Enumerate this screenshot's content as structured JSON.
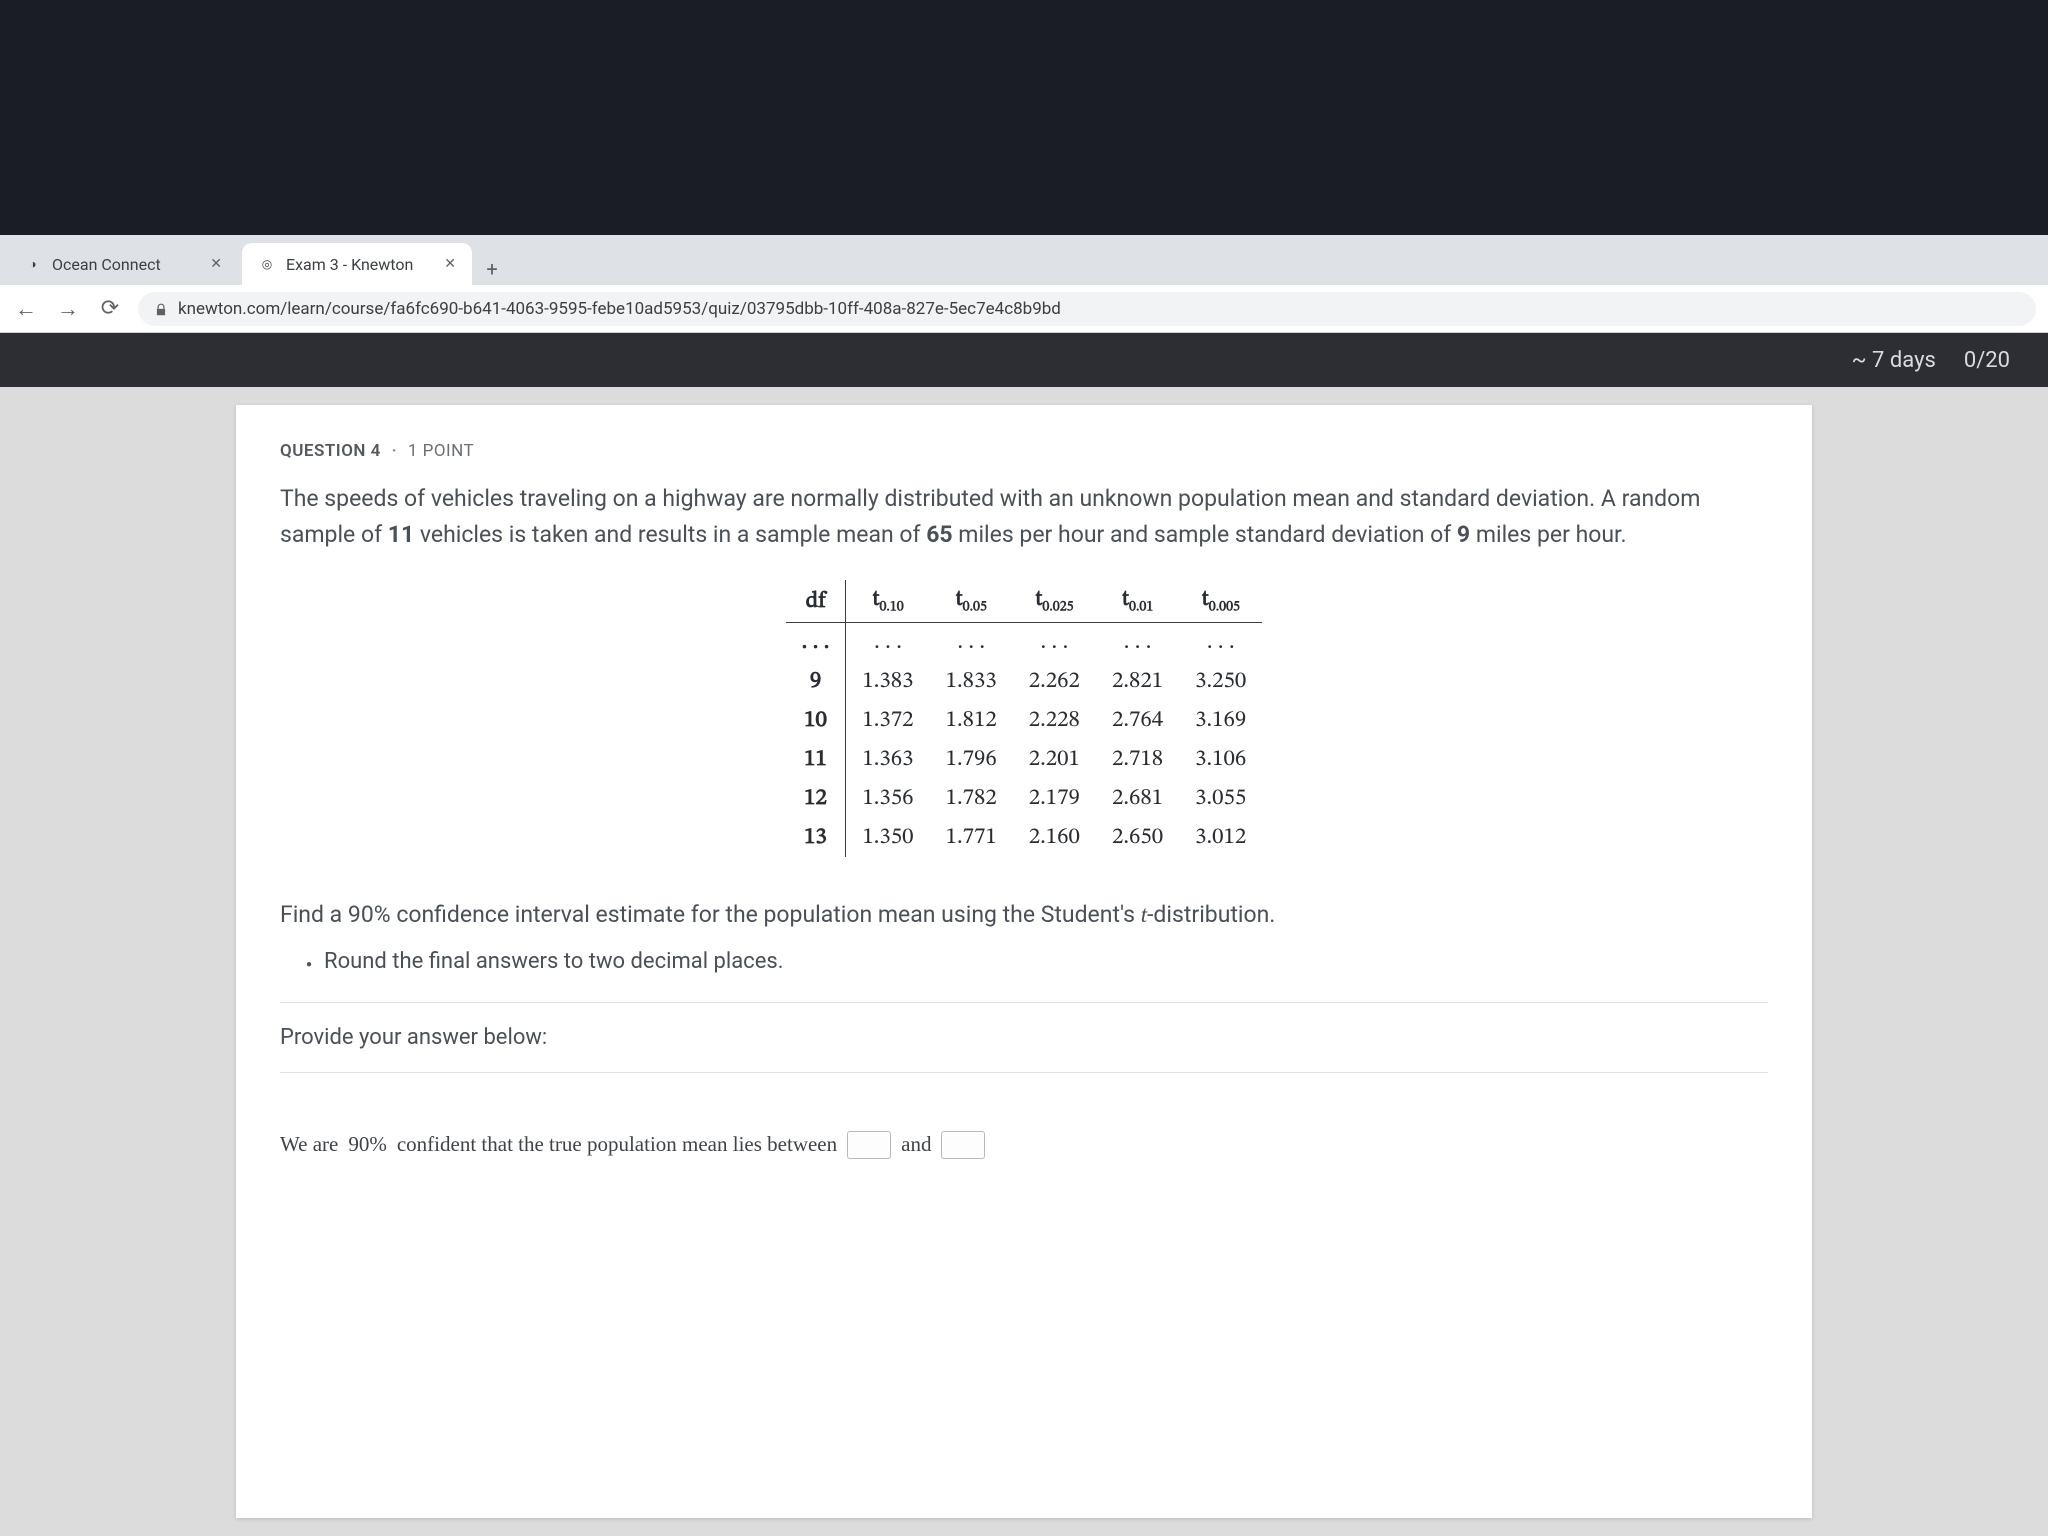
{
  "browser": {
    "tabs": [
      {
        "title": "Ocean Connect",
        "favicon": "◑"
      },
      {
        "title": "Exam 3 - Knewton",
        "favicon": "◎"
      }
    ],
    "nav": {
      "back": "←",
      "forward": "→",
      "reload": "⟳",
      "lock": "🔒"
    },
    "url": "knewton.com/learn/course/fa6fc690-b641-4063-9595-febe10ad5953/quiz/03795dbb-10ff-408a-827e-5ec7e4c8b9bd",
    "header": {
      "due": "~ 7 days",
      "progress": "0/20"
    }
  },
  "question": {
    "label": "QUESTION 4",
    "points": "1 POINT",
    "text_before_n": "The speeds of vehicles traveling on a highway are normally distributed with an unknown population mean and standard deviation. A random sample of ",
    "n": "11",
    "text_mid1": " vehicles is taken and results in a sample mean of ",
    "mean": "65",
    "text_mid2": " miles per hour and sample standard deviation of ",
    "sd": "9",
    "text_after": " miles per hour.",
    "table": {
      "headers": {
        "df": "df",
        "subs": [
          "0.10",
          "0.05",
          "0.025",
          "0.01",
          "0.005"
        ]
      },
      "ellipsis": ". . .",
      "rows": [
        {
          "df": "9",
          "v": [
            "1.383",
            "1.833",
            "2.262",
            "2.821",
            "3.250"
          ]
        },
        {
          "df": "10",
          "v": [
            "1.372",
            "1.812",
            "2.228",
            "2.764",
            "3.169"
          ]
        },
        {
          "df": "11",
          "v": [
            "1.363",
            "1.796",
            "2.201",
            "2.718",
            "3.106"
          ]
        },
        {
          "df": "12",
          "v": [
            "1.356",
            "1.782",
            "2.179",
            "2.681",
            "3.055"
          ]
        },
        {
          "df": "13",
          "v": [
            "1.350",
            "1.771",
            "2.160",
            "2.650",
            "3.012"
          ]
        }
      ]
    },
    "instruction_pre": "Find a ",
    "conf": "90%",
    "instruction_post": " confidence interval estimate for the population mean using the Student's ",
    "t_letter": "t",
    "instruction_end": "-distribution.",
    "bullet": "Round the final answers to two decimal places.",
    "provide": "Provide your answer below:",
    "answer": {
      "pre": "We are ",
      "pct": "90%",
      "mid": " confident that the true population mean lies between ",
      "and": "and"
    }
  }
}
